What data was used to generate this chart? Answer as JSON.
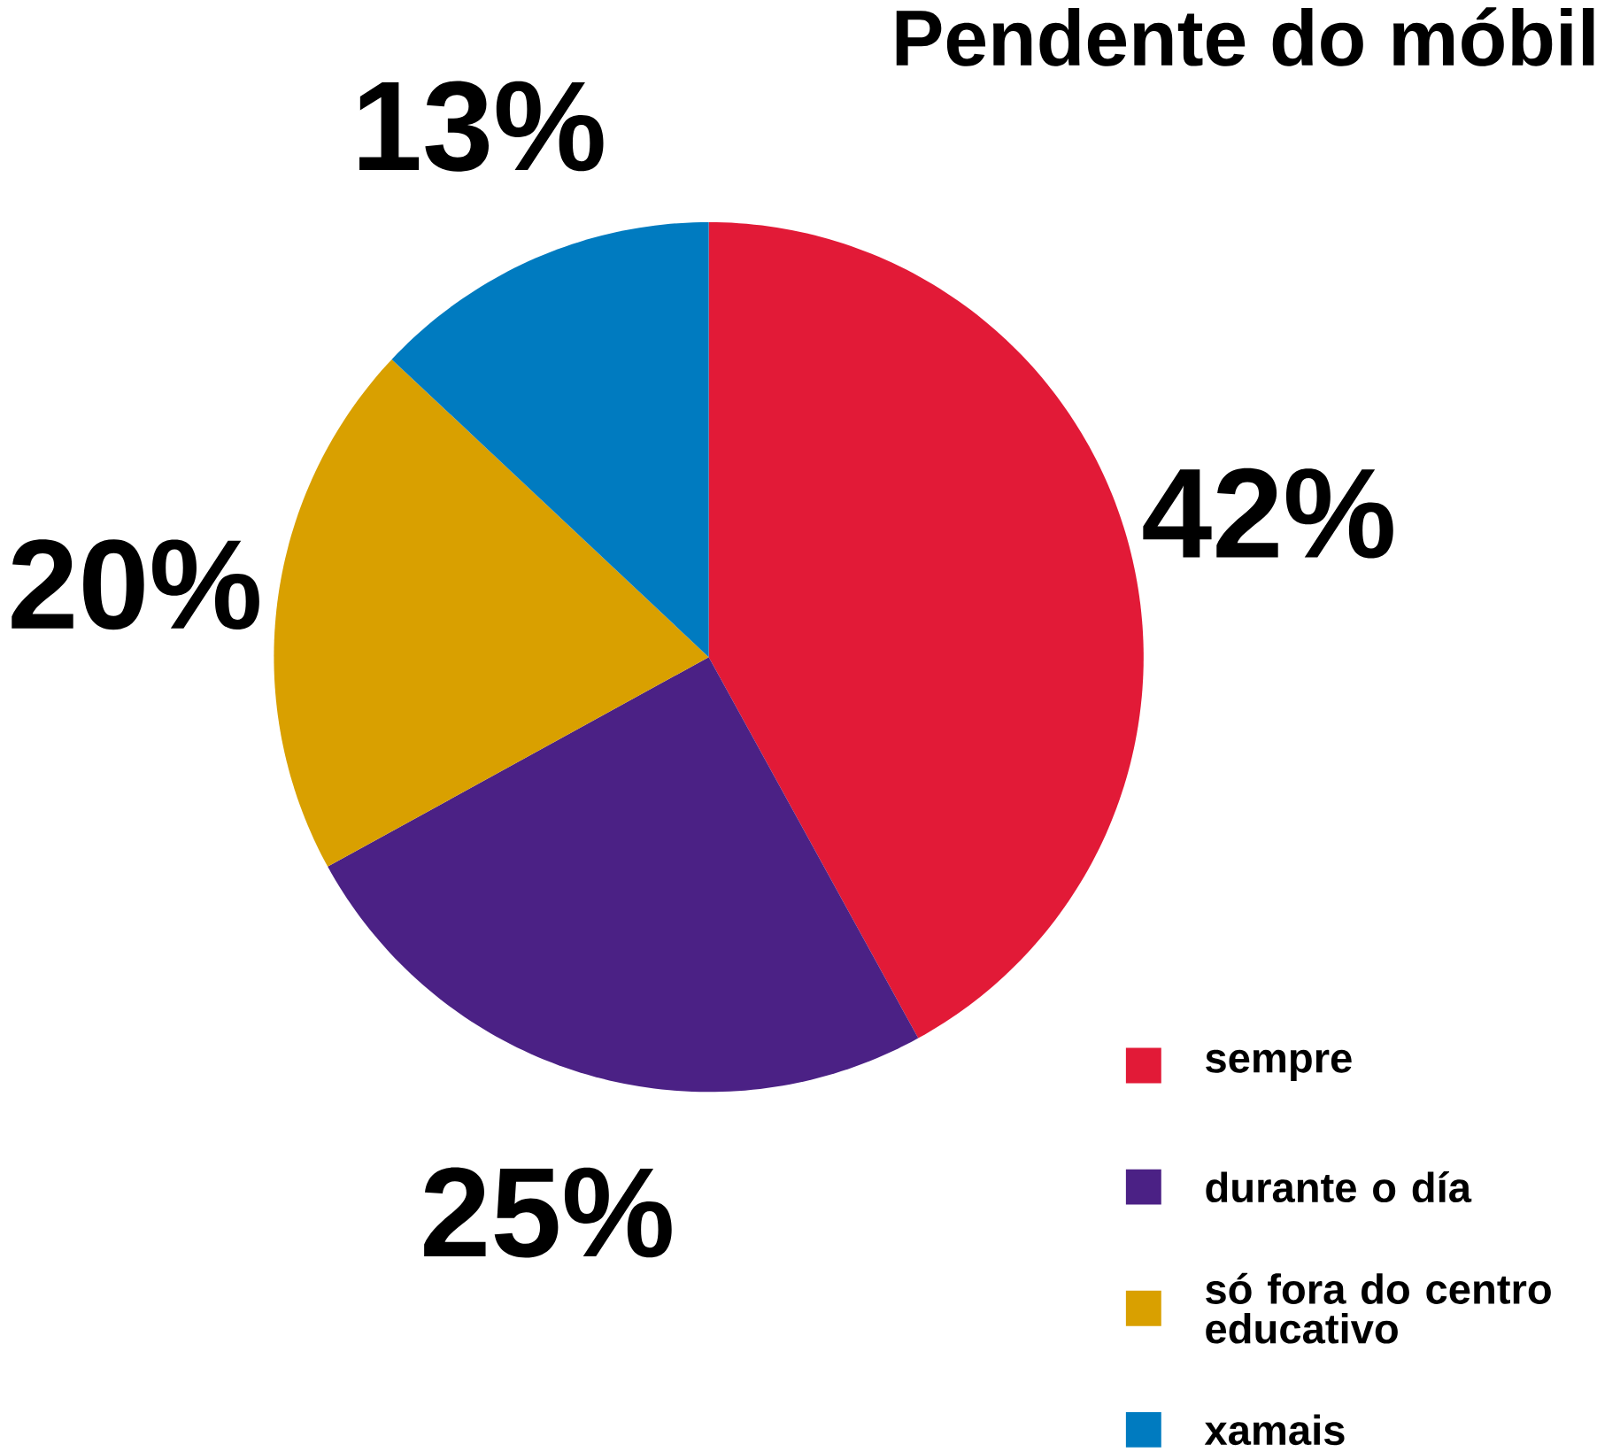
{
  "chart_data": {
    "type": "pie",
    "title": "Pendente do móbil",
    "categories": [
      "sempre",
      "durante o día",
      "só fora do centro educativo",
      "xamais"
    ],
    "values": [
      42,
      25,
      20,
      13
    ],
    "colors": [
      "#e21a37",
      "#4b2185",
      "#d9a000",
      "#007bc0"
    ],
    "value_labels": [
      "42%",
      "25%",
      "20%",
      "13%"
    ],
    "legend": "bottom right"
  }
}
